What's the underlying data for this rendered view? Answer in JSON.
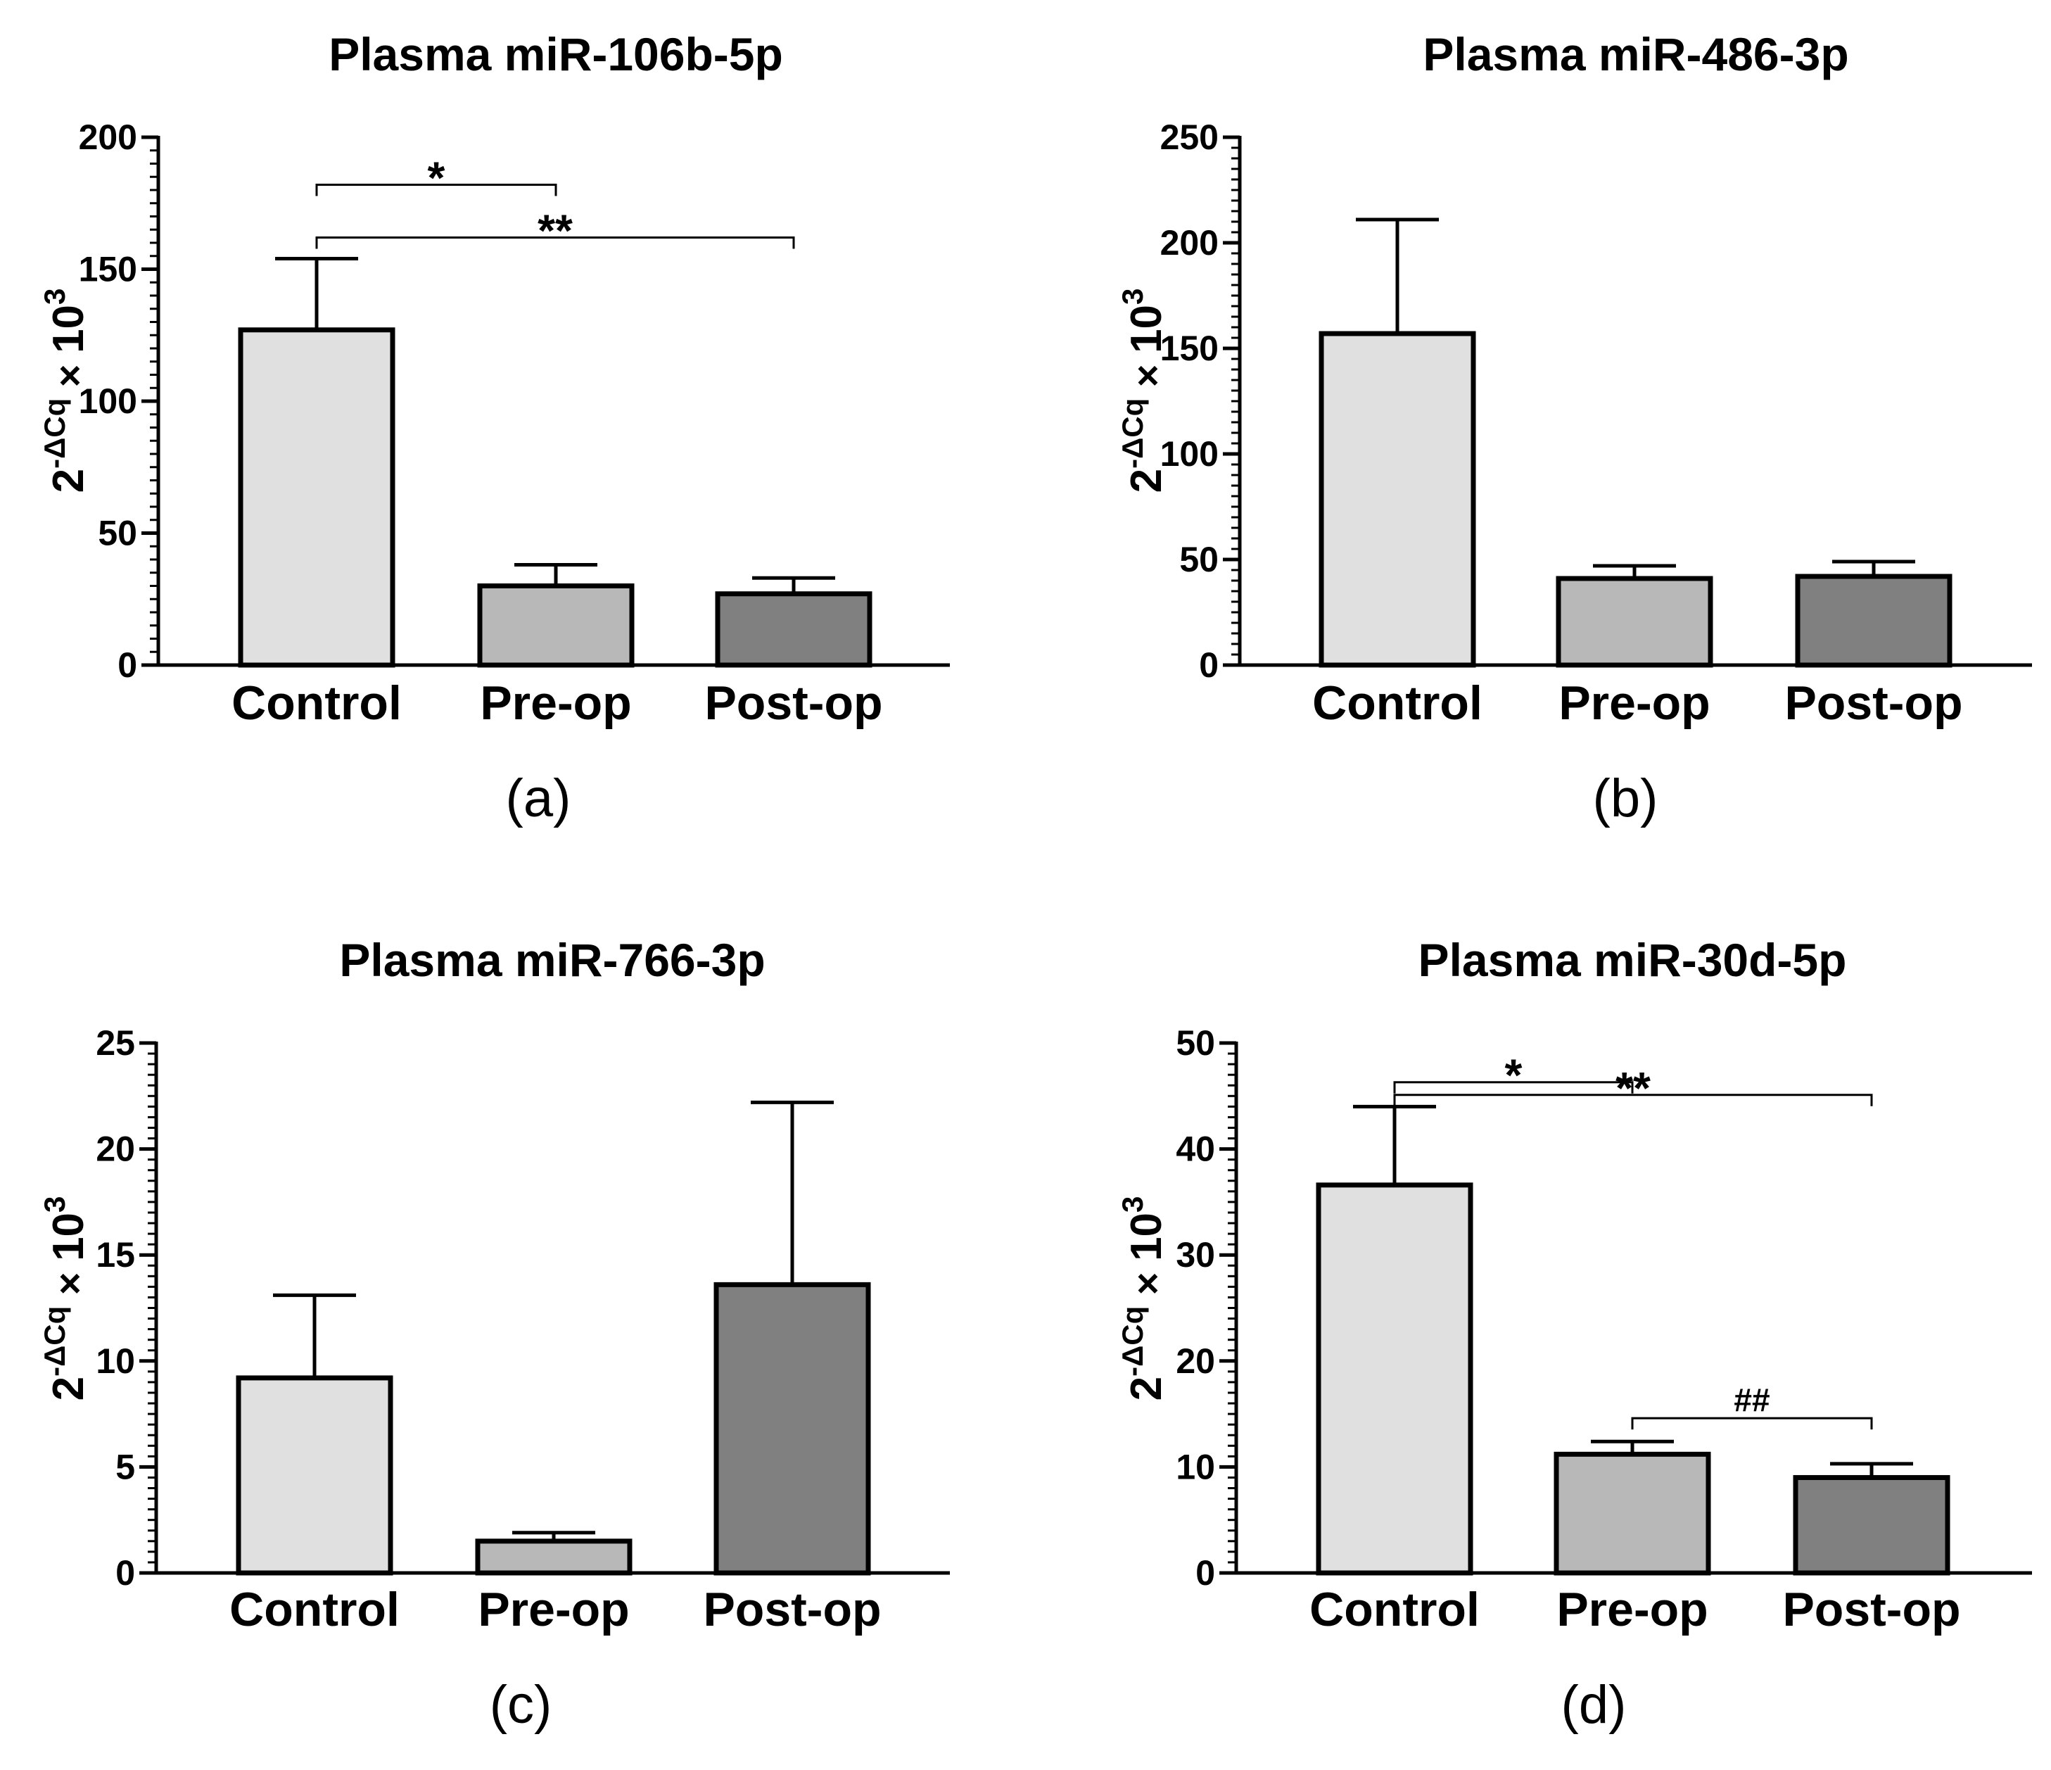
{
  "chart_data": [
    {
      "type": "bar",
      "panel_label": "(a)",
      "title": "Plasma miR-106b-5p",
      "ylabel": {
        "base": "2",
        "sup": "-ΔCq",
        "mid": "×",
        "mult": "10",
        "mult_sup": "3"
      },
      "ylim": [
        0,
        200
      ],
      "yticks": [
        0,
        50,
        100,
        150,
        200
      ],
      "ytick_labels": [
        "0",
        "50",
        "100",
        "150",
        "200"
      ],
      "categories": [
        "Control",
        "Pre-op",
        "Post-op"
      ],
      "values": [
        127,
        30,
        27
      ],
      "errors": [
        27,
        8,
        6
      ],
      "colors": [
        "#e0e0e0",
        "#b8b8b8",
        "#808080"
      ],
      "annotations": [
        {
          "from": 0,
          "to": 1,
          "label": "*",
          "y": 182
        },
        {
          "from": 0,
          "to": 2,
          "label": "**",
          "y": 162
        }
      ]
    },
    {
      "type": "bar",
      "panel_label": "(b)",
      "title": "Plasma miR-486-3p",
      "ylabel": {
        "base": "2",
        "sup": "-ΔCq",
        "mid": "×",
        "mult": "10",
        "mult_sup": "3"
      },
      "ylim": [
        0,
        250
      ],
      "yticks": [
        0,
        50,
        100,
        150,
        200,
        250
      ],
      "ytick_labels": [
        "0",
        "50",
        "100",
        "150",
        "200",
        "250"
      ],
      "categories": [
        "Control",
        "Pre-op",
        "Post-op"
      ],
      "values": [
        157,
        41,
        42
      ],
      "errors": [
        54,
        6,
        7
      ],
      "colors": [
        "#e0e0e0",
        "#b8b8b8",
        "#808080"
      ],
      "annotations": []
    },
    {
      "type": "bar",
      "panel_label": "(c)",
      "title": "Plasma miR-766-3p",
      "ylabel": {
        "base": "2",
        "sup": "-ΔCq",
        "mid": "×",
        "mult": "10",
        "mult_sup": "3"
      },
      "ylim": [
        0,
        25
      ],
      "yticks": [
        0,
        5,
        10,
        15,
        20,
        25
      ],
      "ytick_labels": [
        "0",
        "5",
        "10",
        "15",
        "20",
        "25"
      ],
      "categories": [
        "Control",
        "Pre-op",
        "Post-op"
      ],
      "values": [
        9.2,
        1.5,
        13.6
      ],
      "errors": [
        3.9,
        0.4,
        8.6
      ],
      "colors": [
        "#e0e0e0",
        "#b8b8b8",
        "#808080"
      ],
      "annotations": []
    },
    {
      "type": "bar",
      "panel_label": "(d)",
      "title": "Plasma miR-30d-5p",
      "ylabel": {
        "base": "2",
        "sup": "-ΔCq",
        "mid": "×",
        "mult": "10",
        "mult_sup": "3"
      },
      "ylim": [
        0,
        50
      ],
      "yticks": [
        0,
        10,
        20,
        30,
        40,
        50
      ],
      "ytick_labels": [
        "0",
        "10",
        "20",
        "30",
        "40",
        "50"
      ],
      "categories": [
        "Control",
        "Pre-op",
        "Post-op"
      ],
      "values": [
        36.6,
        11.2,
        9.0
      ],
      "errors": [
        7.4,
        1.2,
        1.3
      ],
      "colors": [
        "#e0e0e0",
        "#b8b8b8",
        "#808080"
      ],
      "annotations": [
        {
          "from": 0,
          "to": 1,
          "label": "*",
          "y": 46.3
        },
        {
          "from": 0,
          "to": 2,
          "label": "**",
          "y": 45.1
        },
        {
          "from": 1,
          "to": 2,
          "label": "##",
          "y": 14.6
        }
      ]
    }
  ]
}
